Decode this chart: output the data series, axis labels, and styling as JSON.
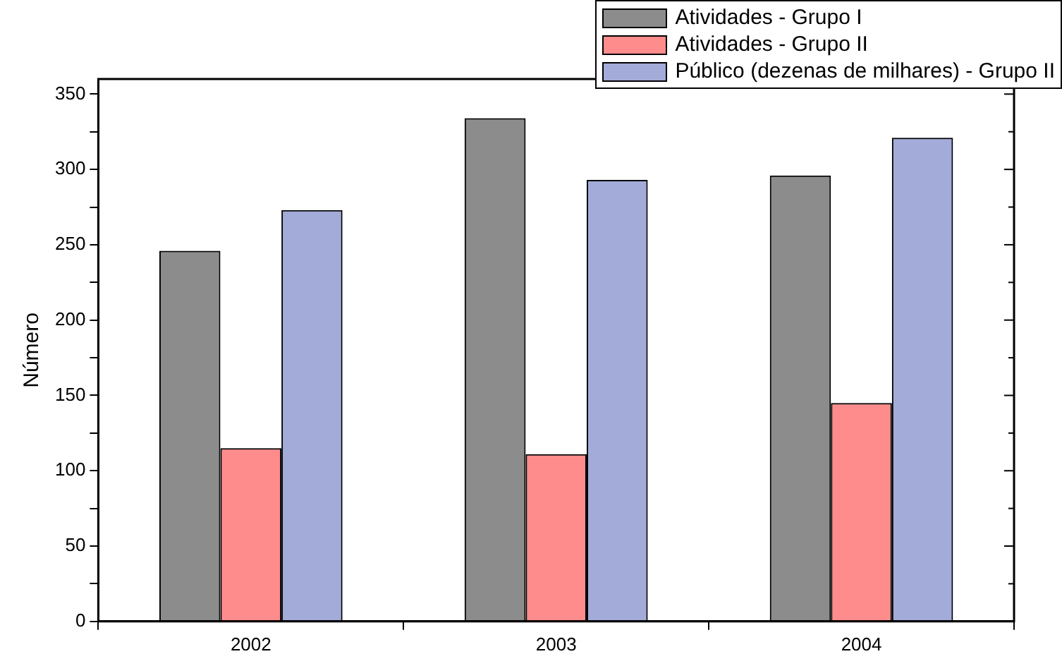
{
  "chart_data": {
    "type": "bar",
    "ylabel": "Número",
    "categories": [
      "2002",
      "2003",
      "2004"
    ],
    "series": [
      {
        "name": "Atividades - Grupo I",
        "color": "#000000",
        "values": [
          246,
          334,
          296
        ]
      },
      {
        "name": "Atividades - Grupo II",
        "color": "#ff0000",
        "values": [
          115,
          111,
          145
        ]
      },
      {
        "name": "Público (dezenas de milhares) - Grupo II",
        "color": "#3344aa",
        "values": [
          273,
          293,
          321
        ]
      }
    ],
    "ylim": [
      0,
      360
    ],
    "yticks": [
      0,
      {
        "value": 25,
        "label": null
      },
      50,
      {
        "value": 75,
        "label": null
      },
      100,
      {
        "value": 125,
        "label": null
      },
      150,
      {
        "value": 175,
        "label": null
      },
      200,
      {
        "value": 225,
        "label": null
      },
      250,
      {
        "value": 275,
        "label": null
      },
      300,
      {
        "value": 325,
        "label": null
      },
      350
    ],
    "grid": false,
    "legend": "top right"
  }
}
